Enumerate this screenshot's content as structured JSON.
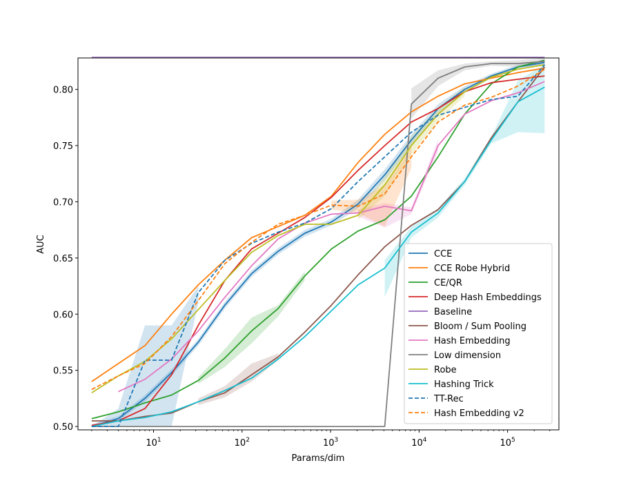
{
  "chart_data": {
    "type": "line",
    "title": "",
    "xlabel": "Params/dim",
    "ylabel": "AUC",
    "xscale": "log",
    "xlim": [
      1.4,
      380000
    ],
    "ylim": [
      0.497,
      0.828
    ],
    "legend_position": "lower-right",
    "xticks": [
      {
        "value": 10,
        "base": "10",
        "exp": "1"
      },
      {
        "value": 100,
        "base": "10",
        "exp": "2"
      },
      {
        "value": 1000,
        "base": "10",
        "exp": "3"
      },
      {
        "value": 10000,
        "base": "10",
        "exp": "4"
      },
      {
        "value": 100000,
        "base": "10",
        "exp": "5"
      }
    ],
    "yticks": [
      {
        "value": 0.5,
        "label": "0.50"
      },
      {
        "value": 0.55,
        "label": "0.55"
      },
      {
        "value": 0.6,
        "label": "0.60"
      },
      {
        "value": 0.65,
        "label": "0.65"
      },
      {
        "value": 0.7,
        "label": "0.70"
      },
      {
        "value": 0.75,
        "label": "0.75"
      },
      {
        "value": 0.8,
        "label": "0.80"
      }
    ],
    "series": [
      {
        "name": "CCE",
        "color": "#1f77b4",
        "dash": "solid",
        "x": [
          2,
          4,
          8,
          16,
          32,
          64,
          128,
          256,
          512,
          1024,
          2048,
          4096,
          8192,
          16384,
          32768,
          65536,
          131072,
          262144
        ],
        "y": [
          0.5,
          0.507,
          0.525,
          0.548,
          0.575,
          0.608,
          0.636,
          0.656,
          0.672,
          0.682,
          0.698,
          0.724,
          0.755,
          0.783,
          0.8,
          0.812,
          0.82,
          0.824
        ]
      },
      {
        "name": "CCE Robe Hybrid",
        "color": "#ff7f0e",
        "dash": "solid",
        "x": [
          2,
          4,
          8,
          16,
          32,
          64,
          128,
          256,
          512,
          1024,
          2048,
          4096,
          8192,
          16384,
          32768,
          65536,
          131072,
          262144
        ],
        "y": [
          0.54,
          0.556,
          0.572,
          0.6,
          0.626,
          0.648,
          0.668,
          0.678,
          0.688,
          0.705,
          0.735,
          0.76,
          0.78,
          0.794,
          0.805,
          0.81,
          0.815,
          0.819
        ]
      },
      {
        "name": "CE/QR",
        "color": "#2ca02c",
        "dash": "solid",
        "x": [
          2,
          4,
          8,
          16,
          32,
          64,
          128,
          256,
          512,
          1024,
          2048,
          4096,
          8192,
          16384,
          32768,
          65536,
          131072,
          262144
        ],
        "y": [
          0.507,
          0.513,
          0.521,
          0.528,
          0.541,
          0.561,
          0.585,
          0.605,
          0.634,
          0.658,
          0.674,
          0.684,
          0.705,
          0.74,
          0.778,
          0.805,
          0.82,
          0.826
        ]
      },
      {
        "name": "Deep Hash Embeddings",
        "color": "#d62728",
        "dash": "solid",
        "x": [
          2,
          4,
          8,
          16,
          32,
          64,
          128,
          256,
          512,
          1024,
          2048,
          4096,
          8192,
          16384,
          32768,
          65536,
          131072,
          262144
        ],
        "y": [
          0.501,
          0.505,
          0.516,
          0.546,
          0.59,
          0.63,
          0.658,
          0.672,
          0.686,
          0.704,
          0.728,
          0.75,
          0.771,
          0.783,
          0.798,
          0.806,
          0.809,
          0.812
        ]
      },
      {
        "name": "Baseline",
        "color": "#9467bd",
        "dash": "solid",
        "x": [
          2,
          262144
        ],
        "y": [
          0.8285,
          0.8285
        ]
      },
      {
        "name": "Bloom / Sum Pooling",
        "color": "#8c564b",
        "dash": "solid",
        "x": [
          2,
          4,
          8,
          16,
          32,
          64,
          128,
          256,
          512,
          1024,
          2048,
          4096,
          8192,
          16384,
          32768,
          65536,
          131072,
          262144
        ],
        "y": [
          0.505,
          0.505,
          0.509,
          0.512,
          0.522,
          0.53,
          0.546,
          0.562,
          0.584,
          0.608,
          0.635,
          0.66,
          0.679,
          0.693,
          0.718,
          0.757,
          0.789,
          0.82
        ]
      },
      {
        "name": "Hash Embedding",
        "color": "#e377c2",
        "dash": "solid",
        "x": [
          4,
          8,
          16,
          32,
          64,
          128,
          256,
          512,
          1024,
          2048,
          4096,
          8192,
          16384,
          32768,
          65536,
          131072,
          262144
        ],
        "y": [
          0.531,
          0.542,
          0.56,
          0.585,
          0.615,
          0.643,
          0.667,
          0.681,
          0.689,
          0.69,
          0.696,
          0.692,
          0.75,
          0.778,
          0.79,
          0.797,
          0.807
        ]
      },
      {
        "name": "Low dimension",
        "color": "#7f7f7f",
        "dash": "solid",
        "x": [
          2,
          4,
          8,
          16,
          32,
          64,
          128,
          256,
          512,
          1024,
          2048,
          4096,
          8192,
          16384,
          32768,
          65536,
          131072,
          262144
        ],
        "y": [
          0.5,
          0.5,
          0.5,
          0.5,
          0.5,
          0.5,
          0.5,
          0.5,
          0.5,
          0.5,
          0.5,
          0.5,
          0.787,
          0.81,
          0.82,
          0.823,
          0.823,
          0.825
        ]
      },
      {
        "name": "Robe",
        "color": "#bcbd22",
        "dash": "solid",
        "x": [
          2,
          4,
          8,
          16,
          32,
          64,
          128,
          256,
          512,
          1024,
          2048,
          4096,
          8192,
          16384,
          32768,
          65536,
          131072,
          262144
        ],
        "y": [
          0.53,
          0.545,
          0.558,
          0.578,
          0.604,
          0.63,
          0.655,
          0.67,
          0.68,
          0.68,
          0.688,
          0.715,
          0.75,
          0.778,
          0.798,
          0.811,
          0.818,
          0.822
        ]
      },
      {
        "name": "Hashing Trick",
        "color": "#17becf",
        "dash": "solid",
        "x": [
          2,
          4,
          8,
          16,
          32,
          64,
          128,
          256,
          512,
          1024,
          2048,
          4096,
          8192,
          16384,
          32768,
          65536,
          131072,
          262144
        ],
        "y": [
          0.5,
          0.505,
          0.508,
          0.513,
          0.522,
          0.532,
          0.543,
          0.56,
          0.58,
          0.603,
          0.626,
          0.641,
          0.673,
          0.69,
          0.718,
          0.755,
          0.789,
          0.802
        ]
      },
      {
        "name": "TT-Rec",
        "color": "#1f77b4",
        "dash": "dashed",
        "x": [
          2,
          4,
          8,
          16,
          32,
          64,
          128,
          256,
          512,
          1024,
          2048,
          4096,
          8192,
          16384,
          32768,
          65536,
          131072,
          262144
        ],
        "y": [
          0.5,
          0.5,
          0.559,
          0.559,
          0.619,
          0.648,
          0.663,
          0.673,
          0.681,
          0.694,
          0.718,
          0.74,
          0.762,
          0.777,
          0.784,
          0.791,
          0.794,
          0.822
        ]
      },
      {
        "name": "Hash Embedding v2",
        "color": "#ff7f0e",
        "dash": "dashed",
        "x": [
          2,
          4,
          8,
          16,
          32,
          64,
          128,
          256,
          512,
          1024,
          2048,
          4096,
          8192,
          16384,
          32768,
          65536,
          131072,
          262144
        ],
        "y": [
          0.533,
          0.545,
          0.556,
          0.58,
          0.612,
          0.645,
          0.664,
          0.68,
          0.688,
          0.697,
          0.696,
          0.707,
          0.74,
          0.771,
          0.786,
          0.793,
          0.803,
          0.818
        ]
      }
    ],
    "bands": [
      {
        "name": "CCE",
        "color": "#1f77b4",
        "x": [
          2,
          4,
          8,
          16,
          32,
          64,
          128,
          256,
          512,
          1024,
          2048,
          4096,
          8192,
          16384,
          32768,
          65536,
          131072,
          262144
        ],
        "lo": [
          0.5,
          0.505,
          0.522,
          0.545,
          0.572,
          0.605,
          0.633,
          0.653,
          0.669,
          0.679,
          0.694,
          0.719,
          0.75,
          0.779,
          0.797,
          0.81,
          0.818,
          0.822
        ],
        "hi": [
          0.502,
          0.509,
          0.528,
          0.551,
          0.578,
          0.611,
          0.639,
          0.659,
          0.675,
          0.685,
          0.702,
          0.729,
          0.76,
          0.787,
          0.803,
          0.814,
          0.822,
          0.826
        ]
      },
      {
        "name": "CE/QR",
        "color": "#2ca02c",
        "x": [
          32,
          64,
          128,
          256,
          512
        ],
        "lo": [
          0.538,
          0.553,
          0.574,
          0.598,
          0.63
        ],
        "hi": [
          0.544,
          0.569,
          0.597,
          0.608,
          0.638
        ]
      },
      {
        "name": "Bloom / Sum Pooling",
        "color": "#8c564b",
        "x": [
          32,
          64,
          128,
          256
        ],
        "lo": [
          0.519,
          0.526,
          0.54,
          0.559
        ],
        "hi": [
          0.525,
          0.536,
          0.556,
          0.565
        ]
      },
      {
        "name": "Hash Embedding",
        "color": "#e377c2",
        "x": [
          2048,
          4096,
          8192,
          16384
        ],
        "lo": [
          0.687,
          0.677,
          0.689,
          0.745
        ],
        "hi": [
          0.693,
          0.699,
          0.695,
          0.755
        ]
      },
      {
        "name": "Low dimension",
        "color": "#7f7f7f",
        "x": [
          8192,
          16384,
          32768,
          65536,
          131072,
          262144
        ],
        "lo": [
          0.774,
          0.803,
          0.817,
          0.821,
          0.82,
          0.821
        ],
        "hi": [
          0.801,
          0.817,
          0.823,
          0.825,
          0.826,
          0.828
        ]
      },
      {
        "name": "Robe",
        "color": "#bcbd22",
        "x": [
          2048,
          4096,
          8192,
          16384,
          32768
        ],
        "lo": [
          0.684,
          0.705,
          0.742,
          0.772,
          0.794
        ],
        "hi": [
          0.692,
          0.722,
          0.758,
          0.784,
          0.802
        ]
      },
      {
        "name": "Hashing Trick",
        "color": "#17becf",
        "x": [
          4096,
          8192,
          16384,
          32768,
          65536,
          131072,
          262144
        ],
        "lo": [
          0.615,
          0.668,
          0.686,
          0.715,
          0.752,
          0.762,
          0.761
        ],
        "hi": [
          0.648,
          0.678,
          0.694,
          0.721,
          0.758,
          0.808,
          0.822
        ]
      },
      {
        "name": "TT-Rec",
        "color": "#1f77b4",
        "x": [
          2,
          4,
          8,
          16,
          32
        ],
        "lo": [
          0.5,
          0.5,
          0.5,
          0.5,
          0.61
        ],
        "hi": [
          0.5,
          0.516,
          0.59,
          0.59,
          0.625
        ]
      },
      {
        "name": "Hash Embedding v2",
        "color": "#ff7f0e",
        "x": [
          1024,
          2048,
          4096,
          8192
        ],
        "lo": [
          0.693,
          0.69,
          0.678,
          0.73
        ],
        "hi": [
          0.701,
          0.702,
          0.715,
          0.75
        ]
      }
    ]
  }
}
